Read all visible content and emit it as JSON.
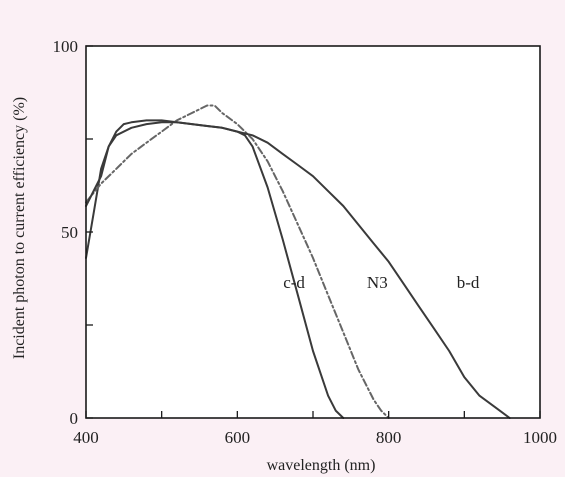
{
  "chart_data": {
    "type": "line",
    "title": "",
    "xlabel": "wavelength (nm)",
    "ylabel": "Incident photon to current efficiency (%)",
    "xlim": [
      400,
      1000
    ],
    "ylim": [
      0,
      100
    ],
    "x_ticks": [
      400,
      600,
      800,
      1000
    ],
    "x_minor_ticks": [
      500,
      700,
      900
    ],
    "y_ticks": [
      0,
      50,
      100
    ],
    "y_minor_ticks": [
      25,
      75
    ],
    "grid": false,
    "legend": "none",
    "series": [
      {
        "name": "c-d",
        "color": "#3a3a3a",
        "dash": "solid",
        "label_at": [
          675,
          35
        ],
        "x": [
          400,
          410,
          420,
          430,
          440,
          450,
          460,
          480,
          500,
          520,
          540,
          560,
          580,
          600,
          610,
          620,
          640,
          660,
          680,
          700,
          720,
          730,
          740
        ],
        "y": [
          43,
          55,
          67,
          73,
          77,
          79,
          79.5,
          80,
          80,
          79.5,
          79,
          78.5,
          78,
          77,
          76,
          73,
          62,
          48,
          33,
          18,
          6,
          2,
          0
        ]
      },
      {
        "name": "N3",
        "color": "#666666",
        "dash": "dashdot",
        "label_at": [
          785,
          35
        ],
        "x": [
          400,
          420,
          440,
          460,
          480,
          500,
          520,
          540,
          560,
          570,
          580,
          600,
          620,
          640,
          660,
          680,
          700,
          720,
          740,
          760,
          780,
          790,
          800
        ],
        "y": [
          58,
          63,
          67,
          71,
          74,
          77,
          80,
          82,
          84,
          84,
          82,
          79,
          75,
          69,
          61,
          52,
          43,
          33,
          23,
          13,
          5,
          2,
          0
        ]
      },
      {
        "name": "b-d",
        "color": "#3a3a3a",
        "dash": "solid",
        "label_at": [
          905,
          35
        ],
        "x": [
          400,
          420,
          430,
          440,
          460,
          480,
          500,
          520,
          540,
          560,
          580,
          600,
          620,
          640,
          660,
          680,
          700,
          720,
          740,
          760,
          780,
          800,
          820,
          840,
          860,
          880,
          900,
          920,
          940,
          960
        ],
        "y": [
          57,
          65,
          73,
          76,
          78,
          79,
          79.5,
          79.5,
          79,
          78.5,
          78,
          77,
          76,
          74,
          71,
          68,
          65,
          61,
          57,
          52,
          47,
          42,
          36,
          30,
          24,
          18,
          11,
          6,
          3,
          0
        ]
      }
    ]
  }
}
